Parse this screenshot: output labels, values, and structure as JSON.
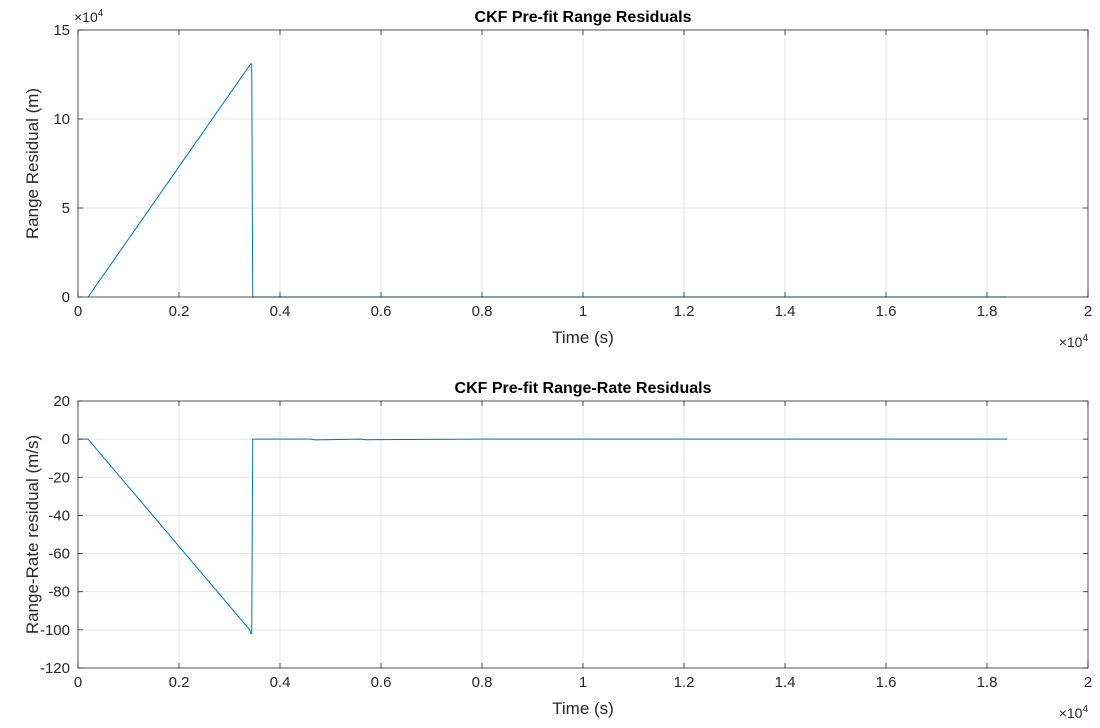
{
  "chart_data": [
    {
      "type": "line",
      "title": "CKF Pre-fit Range Residuals",
      "xlabel": "Time (s)",
      "ylabel": "Range Residual (m)",
      "xlim": [
        0,
        20000
      ],
      "ylim": [
        0,
        150000
      ],
      "x_ticks": [
        0,
        2000,
        4000,
        6000,
        8000,
        10000,
        12000,
        14000,
        16000,
        18000,
        20000
      ],
      "x_tick_labels": [
        "0",
        "0.2",
        "0.4",
        "0.6",
        "0.8",
        "1",
        "1.2",
        "1.4",
        "1.6",
        "1.8",
        "2"
      ],
      "y_ticks": [
        0,
        50000,
        100000,
        150000
      ],
      "y_tick_labels": [
        "0",
        "5",
        "10",
        "15"
      ],
      "x_exponent": {
        "base": "×10",
        "power": "4"
      },
      "y_exponent": {
        "base": "×10",
        "power": "4"
      },
      "grid": true,
      "series": [
        {
          "color": "#0072bd",
          "x": [
            200,
            3420,
            3440,
            3460,
            4500,
            6000,
            8000,
            10000,
            12000,
            14000,
            16000,
            18000,
            18400
          ],
          "y": [
            0,
            131000,
            131000,
            0,
            0,
            0,
            0,
            0,
            0,
            0,
            0,
            0,
            0
          ]
        }
      ]
    },
    {
      "type": "line",
      "title": "CKF Pre-fit Range-Rate Residuals",
      "xlabel": "Time (s)",
      "ylabel": "Range-Rate residual (m/s)",
      "xlim": [
        0,
        20000
      ],
      "ylim": [
        -120,
        20
      ],
      "x_ticks": [
        0,
        2000,
        4000,
        6000,
        8000,
        10000,
        12000,
        14000,
        16000,
        18000,
        20000
      ],
      "x_tick_labels": [
        "0",
        "0.2",
        "0.4",
        "0.6",
        "0.8",
        "1",
        "1.2",
        "1.4",
        "1.6",
        "1.8",
        "2"
      ],
      "y_ticks": [
        -120,
        -100,
        -80,
        -60,
        -40,
        -20,
        0,
        20
      ],
      "y_tick_labels": [
        "-120",
        "-100",
        "-80",
        "-60",
        "-40",
        "-20",
        "0",
        "20"
      ],
      "x_exponent": {
        "base": "×10",
        "power": "4"
      },
      "grid": true,
      "series": [
        {
          "color": "#0072bd",
          "x": [
            0,
            200,
            3400,
            3420,
            3440,
            3460,
            4600,
            4700,
            5600,
            5700,
            8000,
            10000,
            12000,
            14000,
            16000,
            18000,
            18400
          ],
          "y": [
            0,
            0,
            -100,
            -102,
            -102,
            0,
            0,
            -0.4,
            0,
            -0.3,
            0,
            0,
            0,
            0,
            0,
            0,
            0
          ]
        }
      ]
    }
  ]
}
